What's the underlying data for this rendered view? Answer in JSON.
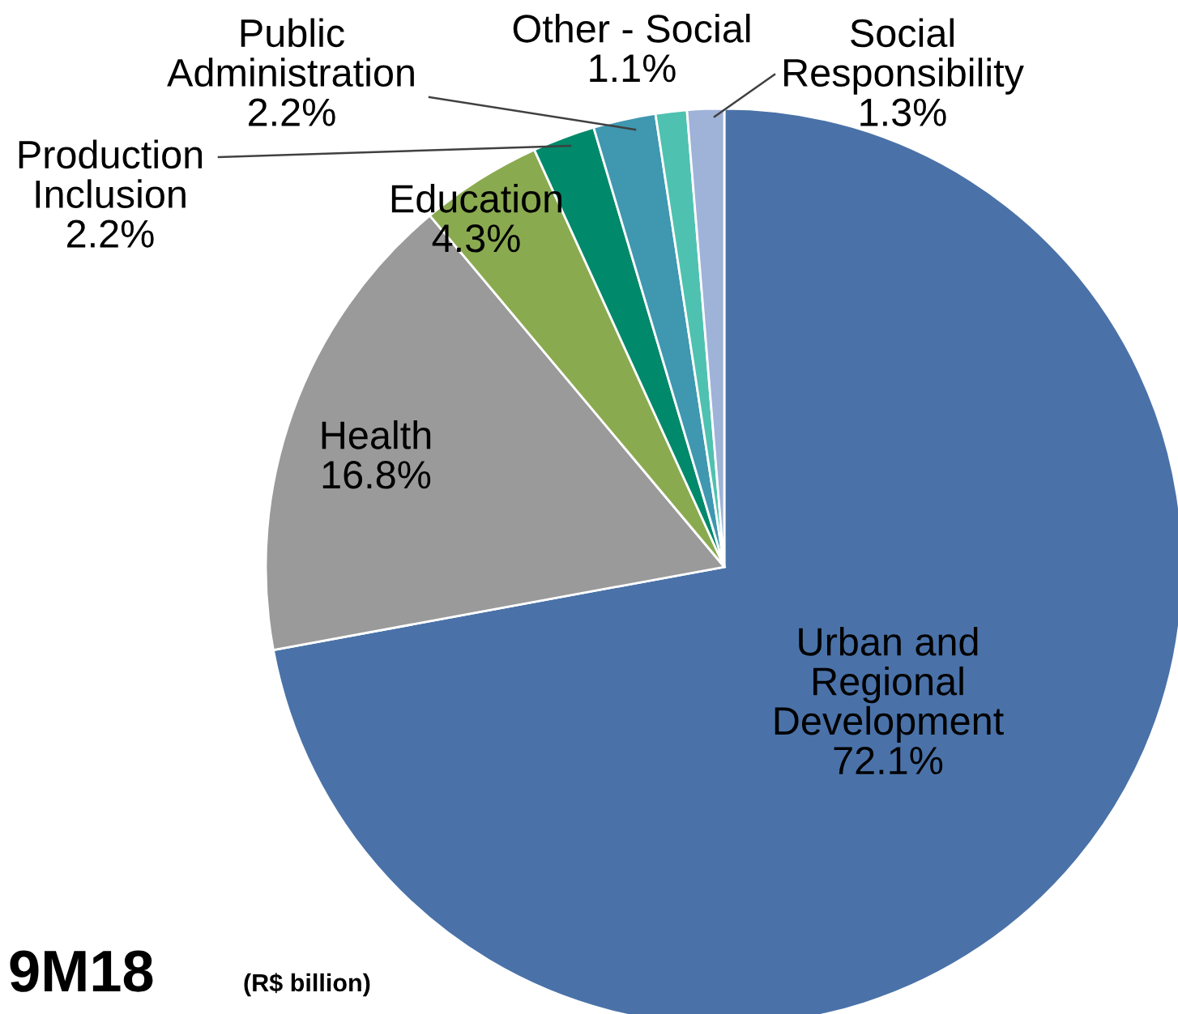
{
  "chart_data": {
    "type": "pie",
    "title": "9M18",
    "subtitle": "(R$ billion)",
    "categories": [
      "Urban and\nRegional\nDevelopment",
      "Health",
      "Education",
      "Production\nInclusion",
      "Public\nAdministration",
      "Other - Social",
      "Social\nResponsibility"
    ],
    "values": [
      72.1,
      16.8,
      4.3,
      2.2,
      2.2,
      1.1,
      1.3
    ],
    "colors": [
      "#4a72a8",
      "#9a9a9a",
      "#8aaa50",
      "#00896a",
      "#3f97b0",
      "#4fc1b0",
      "#9fb2d8"
    ],
    "value_labels": [
      "72.1%",
      "16.8%",
      "4.3%",
      "2.2%",
      "2.2%",
      "1.1%",
      "1.3%"
    ],
    "data_labels": true,
    "legend": false
  }
}
